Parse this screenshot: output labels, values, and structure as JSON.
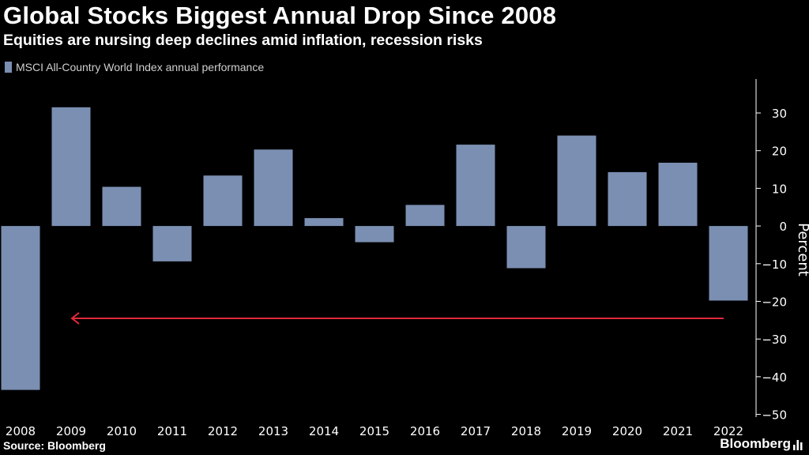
{
  "header": {
    "title": "Global Stocks Biggest Annual Drop Since 2008",
    "subtitle": "Equities are nursing deep declines amid inflation, recession risks"
  },
  "legend": {
    "label": "MSCI All-Country World Index annual performance"
  },
  "footer": {
    "source": "Source: Bloomberg",
    "brand": "Bloomberg"
  },
  "colors": {
    "bar": "#7b8fb2",
    "arrow": "#e0283a",
    "axis": "#ffffff",
    "background": "#000000"
  },
  "chart_data": {
    "type": "bar",
    "title": "Global Stocks Biggest Annual Drop Since 2008",
    "subtitle": "Equities are nursing deep declines amid inflation, recession risks",
    "xlabel": "",
    "ylabel": "Percent",
    "ylim": [
      -52,
      38
    ],
    "yticks": [
      30,
      20,
      10,
      0,
      -10,
      -20,
      -30,
      -40,
      -50
    ],
    "grid": false,
    "legend_position": "top-left",
    "categories": [
      "2008",
      "2009",
      "2010",
      "2011",
      "2012",
      "2013",
      "2014",
      "2015",
      "2016",
      "2017",
      "2018",
      "2019",
      "2020",
      "2021",
      "2022"
    ],
    "series": [
      {
        "name": "MSCI All-Country World Index annual performance",
        "values": [
          -43.5,
          31.5,
          10.4,
          -9.4,
          13.4,
          20.3,
          2.1,
          -4.3,
          5.6,
          21.6,
          -11.2,
          24.0,
          14.3,
          16.8,
          -19.8
        ]
      }
    ],
    "annotations": [
      {
        "type": "arrow",
        "from_category": "2022",
        "to_category": "2009",
        "y": -24.5,
        "direction": "left"
      }
    ]
  }
}
